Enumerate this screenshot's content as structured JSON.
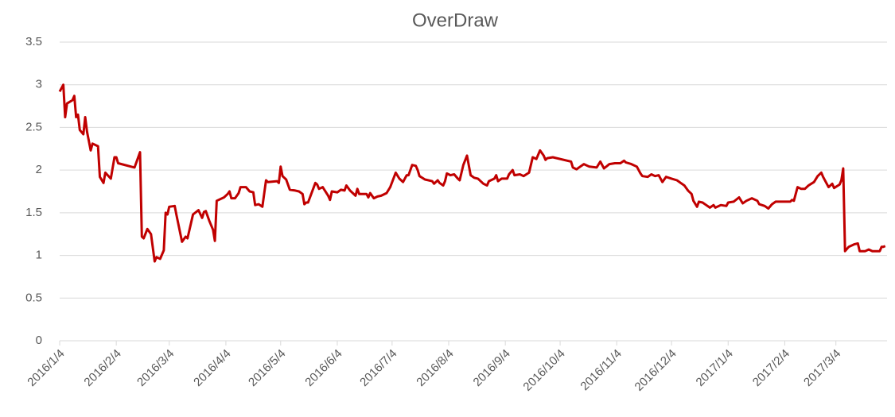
{
  "chart_data": {
    "type": "line",
    "title": "OverDraw",
    "x": [
      "2016/1/4",
      "2016/1/6",
      "2016/1/7",
      "2016/1/8",
      "2016/1/11",
      "2016/1/12",
      "2016/1/13",
      "2016/1/14",
      "2016/1/15",
      "2016/1/17",
      "2016/1/18",
      "2016/1/19",
      "2016/1/21",
      "2016/1/22",
      "2016/1/25",
      "2016/1/26",
      "2016/1/28",
      "2016/1/29",
      "2016/2/1",
      "2016/2/3",
      "2016/2/4",
      "2016/2/5",
      "2016/2/14",
      "2016/2/17",
      "2016/2/18",
      "2016/2/19",
      "2016/2/21",
      "2016/2/23",
      "2016/2/25",
      "2016/2/26",
      "2016/2/28",
      "2016/3/1",
      "2016/3/2",
      "2016/3/3",
      "2016/3/4",
      "2016/3/7",
      "2016/3/8",
      "2016/3/11",
      "2016/3/13",
      "2016/3/14",
      "2016/3/17",
      "2016/3/20",
      "2016/3/22",
      "2016/3/23",
      "2016/3/24",
      "2016/3/26",
      "2016/3/28",
      "2016/3/29",
      "2016/3/30",
      "2016/4/3",
      "2016/4/5",
      "2016/4/6",
      "2016/4/7",
      "2016/4/9",
      "2016/4/11",
      "2016/4/12",
      "2016/4/15",
      "2016/4/17",
      "2016/4/19",
      "2016/4/20",
      "2016/4/22",
      "2016/4/24",
      "2016/4/26",
      "2016/4/27",
      "2016/5/2",
      "2016/5/3",
      "2016/5/4",
      "2016/5/5",
      "2016/5/7",
      "2016/5/9",
      "2016/5/12",
      "2016/5/14",
      "2016/5/16",
      "2016/5/17",
      "2016/5/18",
      "2016/5/19",
      "2016/5/23",
      "2016/5/24",
      "2016/5/25",
      "2016/5/27",
      "2016/5/30",
      "2016/5/31",
      "2016/6/1",
      "2016/6/4",
      "2016/6/6",
      "2016/6/8",
      "2016/6/9",
      "2016/6/11",
      "2016/6/14",
      "2016/6/15",
      "2016/6/16",
      "2016/6/20",
      "2016/6/21",
      "2016/6/22",
      "2016/6/24",
      "2016/6/26",
      "2016/6/28",
      "2016/7/1",
      "2016/7/3",
      "2016/7/6",
      "2016/7/8",
      "2016/7/10",
      "2016/7/12",
      "2016/7/13",
      "2016/7/15",
      "2016/7/17",
      "2016/7/18",
      "2016/7/19",
      "2016/7/22",
      "2016/7/26",
      "2016/7/27",
      "2016/7/29",
      "2016/7/30",
      "2016/8/1",
      "2016/8/2",
      "2016/8/3",
      "2016/8/5",
      "2016/8/7",
      "2016/8/9",
      "2016/8/10",
      "2016/8/12",
      "2016/8/14",
      "2016/8/16",
      "2016/8/18",
      "2016/8/20",
      "2016/8/23",
      "2016/8/25",
      "2016/8/26",
      "2016/8/29",
      "2016/8/30",
      "2016/8/31",
      "2016/9/2",
      "2016/9/5",
      "2016/9/6",
      "2016/9/8",
      "2016/9/9",
      "2016/9/12",
      "2016/9/14",
      "2016/9/17",
      "2016/9/19",
      "2016/9/21",
      "2016/9/23",
      "2016/9/25",
      "2016/9/26",
      "2016/9/27",
      "2016/9/30",
      "2016/10/10",
      "2016/10/11",
      "2016/10/13",
      "2016/10/15",
      "2016/10/17",
      "2016/10/20",
      "2016/10/24",
      "2016/10/26",
      "2016/10/28",
      "2016/10/31",
      "2016/11/3",
      "2016/11/6",
      "2016/11/8",
      "2016/11/9",
      "2016/11/12",
      "2016/11/15",
      "2016/11/17",
      "2016/11/18",
      "2016/11/21",
      "2016/11/23",
      "2016/11/25",
      "2016/11/27",
      "2016/11/29",
      "2016/12/1",
      "2016/12/4",
      "2016/12/7",
      "2016/12/9",
      "2016/12/11",
      "2016/12/13",
      "2016/12/15",
      "2016/12/16",
      "2016/12/18",
      "2016/12/19",
      "2016/12/21",
      "2016/12/23",
      "2016/12/25",
      "2016/12/27",
      "2016/12/28",
      "2016/12/31",
      "2017/1/3",
      "2017/1/4",
      "2017/1/7",
      "2017/1/10",
      "2017/1/12",
      "2017/1/14",
      "2017/1/17",
      "2017/1/20",
      "2017/1/21",
      "2017/1/24",
      "2017/1/26",
      "2017/1/28",
      "2017/1/30",
      "2017/2/7",
      "2017/2/8",
      "2017/2/9",
      "2017/2/11",
      "2017/2/13",
      "2017/2/15",
      "2017/2/17",
      "2017/2/20",
      "2017/2/22",
      "2017/2/24",
      "2017/2/25",
      "2017/2/28",
      "2017/3/2",
      "2017/3/3",
      "2017/3/6",
      "2017/3/7",
      "2017/3/8",
      "2017/3/9",
      "2017/3/11",
      "2017/3/14",
      "2017/3/16",
      "2017/3/17",
      "2017/3/20",
      "2017/3/22",
      "2017/3/24",
      "2017/3/28",
      "2017/3/29",
      "2017/3/30",
      "2017/3/31"
    ],
    "series": [
      {
        "name": "OverDraw",
        "color": "#c00000",
        "values": [
          2.92,
          3.0,
          2.62,
          2.78,
          2.82,
          2.87,
          2.62,
          2.65,
          2.47,
          2.42,
          2.62,
          2.45,
          2.23,
          2.31,
          2.28,
          1.92,
          1.85,
          1.97,
          1.9,
          2.15,
          2.15,
          2.08,
          2.03,
          2.21,
          1.22,
          1.2,
          1.31,
          1.25,
          0.93,
          0.98,
          0.96,
          1.06,
          1.5,
          1.48,
          1.57,
          1.58,
          1.47,
          1.16,
          1.22,
          1.2,
          1.48,
          1.53,
          1.44,
          1.51,
          1.52,
          1.4,
          1.3,
          1.17,
          1.64,
          1.68,
          1.72,
          1.75,
          1.67,
          1.67,
          1.73,
          1.8,
          1.8,
          1.75,
          1.74,
          1.59,
          1.6,
          1.57,
          1.88,
          1.86,
          1.87,
          1.85,
          2.04,
          1.93,
          1.89,
          1.77,
          1.76,
          1.75,
          1.72,
          1.6,
          1.62,
          1.62,
          1.85,
          1.83,
          1.78,
          1.8,
          1.7,
          1.65,
          1.75,
          1.74,
          1.77,
          1.76,
          1.82,
          1.76,
          1.7,
          1.78,
          1.72,
          1.72,
          1.68,
          1.73,
          1.67,
          1.69,
          1.7,
          1.73,
          1.8,
          1.97,
          1.9,
          1.86,
          1.94,
          1.94,
          2.06,
          2.05,
          2.0,
          1.93,
          1.89,
          1.87,
          1.84,
          1.88,
          1.85,
          1.82,
          1.87,
          1.96,
          1.94,
          1.95,
          1.9,
          1.88,
          2.06,
          2.17,
          1.94,
          1.91,
          1.9,
          1.84,
          1.82,
          1.87,
          1.9,
          1.94,
          1.87,
          1.9,
          1.9,
          1.95,
          2.0,
          1.94,
          1.95,
          1.93,
          1.97,
          2.15,
          2.13,
          2.23,
          2.17,
          2.12,
          2.14,
          2.15,
          2.1,
          2.03,
          2.01,
          2.04,
          2.07,
          2.04,
          2.03,
          2.1,
          2.02,
          2.07,
          2.08,
          2.08,
          2.11,
          2.09,
          2.07,
          2.04,
          1.96,
          1.93,
          1.92,
          1.95,
          1.93,
          1.94,
          1.86,
          1.92,
          1.9,
          1.88,
          1.85,
          1.82,
          1.76,
          1.72,
          1.64,
          1.57,
          1.63,
          1.62,
          1.59,
          1.56,
          1.59,
          1.56,
          1.59,
          1.58,
          1.62,
          1.63,
          1.68,
          1.61,
          1.64,
          1.67,
          1.64,
          1.6,
          1.58,
          1.55,
          1.6,
          1.63,
          1.63,
          1.65,
          1.64,
          1.8,
          1.78,
          1.78,
          1.82,
          1.86,
          1.93,
          1.97,
          1.92,
          1.8,
          1.84,
          1.79,
          1.83,
          1.88,
          2.02,
          1.05,
          1.1,
          1.13,
          1.14,
          1.05,
          1.05,
          1.07,
          1.05,
          1.05,
          1.1,
          1.1,
          1.11
        ]
      }
    ],
    "xlim": [
      "2016/1/4",
      "2017/4/1"
    ],
    "xticks": [
      "2016/1/4",
      "2016/2/4",
      "2016/3/4",
      "2016/4/4",
      "2016/5/4",
      "2016/6/4",
      "2016/7/4",
      "2016/8/4",
      "2016/9/4",
      "2016/10/4",
      "2016/11/4",
      "2016/12/4",
      "2017/1/4",
      "2017/2/4",
      "2017/3/4"
    ],
    "ylim": [
      0,
      3.5
    ],
    "yticks": [
      0,
      0.5,
      1,
      1.5,
      2,
      2.5,
      3,
      3.5
    ],
    "grid": true
  }
}
